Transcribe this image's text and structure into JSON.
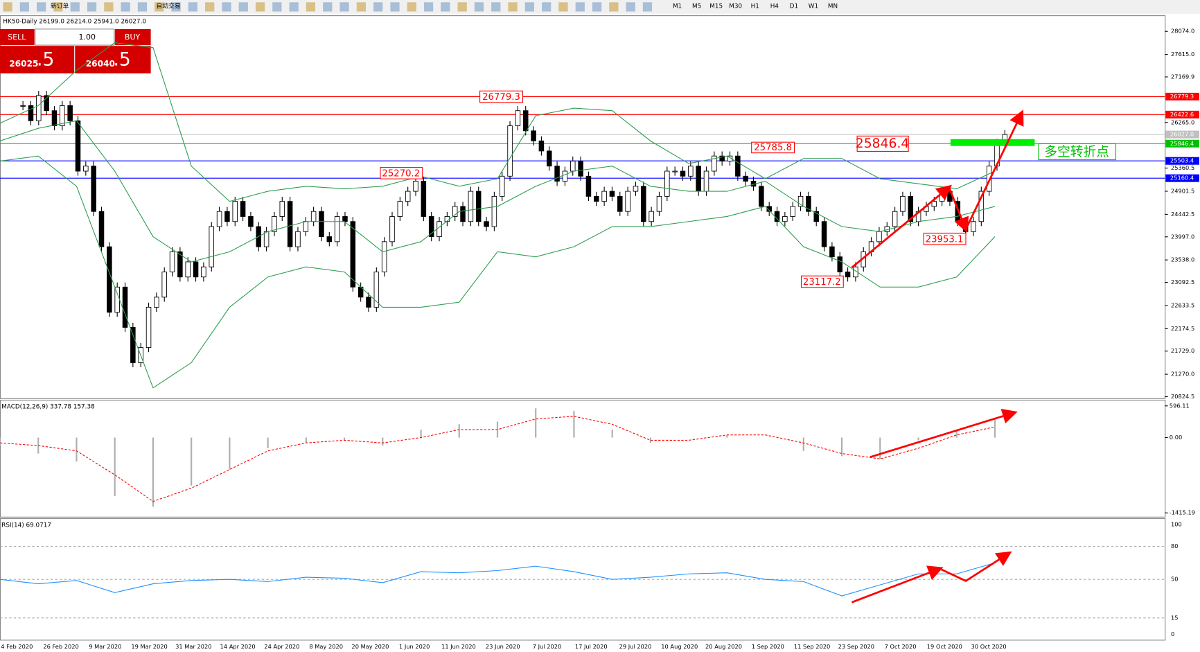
{
  "toolbar": {
    "buttons": [
      "新订单",
      "自动交易"
    ],
    "timeframes": [
      "M1",
      "M5",
      "M15",
      "M30",
      "H1",
      "H4",
      "D1",
      "W1",
      "MN"
    ]
  },
  "chart": {
    "header": "HK50-Daily  26199.0 26214.0 25941.0 26027.0",
    "trade_panel": {
      "sell": "SELL",
      "lot": "1.00",
      "buy": "BUY",
      "bid": "26025",
      "bid_fraction": ".5",
      "ask": "26040",
      "ask_fraction": ".5"
    },
    "ylim": [
      20824.5,
      28074.0
    ],
    "price_ticks": [
      {
        "value": 28074.0,
        "label": "28074.0"
      },
      {
        "value": 27615.0,
        "label": "27615.0"
      },
      {
        "value": 27169.9,
        "label": "27169.9"
      },
      {
        "value": 26265.0,
        "label": "26265.0"
      },
      {
        "value": 25360.5,
        "label": "25360.5"
      },
      {
        "value": 24901.5,
        "label": "24901.5"
      },
      {
        "value": 24442.5,
        "label": "24442.5"
      },
      {
        "value": 23997.0,
        "label": "23997.0"
      },
      {
        "value": 23538.0,
        "label": "23538.0"
      },
      {
        "value": 23092.5,
        "label": "23092.5"
      },
      {
        "value": 22633.5,
        "label": "22633.5"
      },
      {
        "value": 22174.5,
        "label": "22174.5"
      },
      {
        "value": 21729.0,
        "label": "21729.0"
      },
      {
        "value": 21270.0,
        "label": "21270.0"
      },
      {
        "value": 20824.5,
        "label": "20824.5"
      }
    ],
    "levels": [
      {
        "value": 26779.3,
        "label": "26779.3",
        "color": "#ff0000"
      },
      {
        "value": 26422.6,
        "label": "26422.6",
        "color": "#ff0000"
      },
      {
        "value": 26027.0,
        "label": "26027.0",
        "color": "#c0c0c0"
      },
      {
        "value": 25846.4,
        "label": "25846.4",
        "color": "#00c000"
      },
      {
        "value": 25503.4,
        "label": "25503.4",
        "color": "#0000ff"
      },
      {
        "value": 25160.4,
        "label": "25160.4",
        "color": "#0000ff"
      }
    ],
    "annotations": [
      "26779.3",
      "25270.2",
      "25785.8",
      "25846.4",
      "23117.2",
      "23953.1",
      "多空转折点"
    ],
    "closes": [
      26600,
      26300,
      26800,
      26500,
      26200,
      26600,
      26300,
      25300,
      25400,
      24500,
      23800,
      22500,
      23000,
      22200,
      21500,
      21800,
      22600,
      22800,
      23300,
      23700,
      23200,
      23500,
      23200,
      23400,
      24200,
      24500,
      24300,
      24700,
      24400,
      24200,
      23800,
      24100,
      24400,
      24700,
      23800,
      24100,
      24300,
      24500,
      24000,
      23900,
      24400,
      24300,
      23000,
      22800,
      22600,
      23300,
      23900,
      24400,
      24700,
      24900,
      25100,
      24400,
      24000,
      24300,
      24400,
      24600,
      24300,
      24900,
      24300,
      24200,
      24800,
      25200,
      26200,
      26500,
      26100,
      25900,
      25700,
      25400,
      25100,
      25300,
      25500,
      25200,
      24800,
      24700,
      24900,
      24800,
      24500,
      24900,
      25000,
      24300,
      24500,
      24800,
      25300,
      25300,
      25200,
      25400,
      24900,
      25300,
      25600,
      25500,
      25600,
      25200,
      25100,
      25000,
      24600,
      24500,
      24300,
      24400,
      24600,
      24800,
      24500,
      24300,
      23800,
      23600,
      23300,
      23200,
      23400,
      23700,
      23900,
      24100,
      24200,
      24500,
      24800,
      24300,
      24500,
      24600,
      24700,
      24900,
      24700,
      24300,
      24100,
      24300,
      24900,
      25400,
      25850,
      26027
    ],
    "bollinger": {
      "upper": [
        26250,
        26600,
        27300,
        27850,
        27750,
        25400,
        24700,
        24900,
        25000,
        24950,
        25000,
        25200,
        25000,
        25150,
        26400,
        26550,
        26500,
        25900,
        25450,
        25600,
        25150,
        25550,
        25550,
        25150,
        25050,
        24950,
        25300
      ],
      "middle": [
        25900,
        26150,
        26300,
        25300,
        24000,
        23500,
        23700,
        24100,
        24300,
        24300,
        23700,
        23900,
        24500,
        24600,
        25000,
        25300,
        25400,
        25000,
        24900,
        24900,
        25100,
        24600,
        24200,
        24100,
        24300,
        24400,
        24600
      ],
      "lower": [
        25500,
        25600,
        25000,
        23000,
        21000,
        21500,
        22600,
        23200,
        23400,
        23300,
        22600,
        22600,
        22700,
        23700,
        23600,
        23800,
        24200,
        24200,
        24300,
        24400,
        24600,
        23800,
        23500,
        23000,
        23000,
        23200,
        24000
      ]
    },
    "dates": [
      "4 Feb 2020",
      "26 Feb 2020",
      "9 Mar 2020",
      "19 Mar 2020",
      "31 Mar 2020",
      "14 Apr 2020",
      "24 Apr 2020",
      "8 May 2020",
      "20 May 2020",
      "1 Jun 2020",
      "11 Jun 2020",
      "23 Jun 2020",
      "7 Jul 2020",
      "17 Jul 2020",
      "29 Jul 2020",
      "10 Aug 2020",
      "20 Aug 2020",
      "1 Sep 2020",
      "11 Sep 2020",
      "23 Sep 2020",
      "7 Oct 2020",
      "19 Oct 2020",
      "30 Oct 2020"
    ]
  },
  "macd": {
    "label": "MACD(12,26,9) 337.78 157.38",
    "ylim": [
      -1415.19,
      596.11
    ],
    "ticks": [
      596.11,
      {
        "value": 0,
        "label": "0.00"
      },
      -1415.19
    ],
    "histogram": [
      -150,
      -300,
      -450,
      -1100,
      -1300,
      -900,
      -600,
      -200,
      -100,
      -50,
      -150,
      150,
      250,
      300,
      550,
      500,
      150,
      -100,
      0,
      50,
      0,
      -250,
      -350,
      -400,
      -50,
      150,
      350
    ],
    "signal": [
      -100,
      -150,
      -250,
      -700,
      -1200,
      -950,
      -600,
      -250,
      -100,
      -50,
      -100,
      0,
      150,
      150,
      350,
      400,
      250,
      -50,
      -50,
      50,
      50,
      -100,
      -300,
      -400,
      -200,
      50,
      200
    ]
  },
  "rsi": {
    "label": "RSI(14) 69.0717",
    "ylim": [
      0,
      100
    ],
    "ticks": [
      100,
      80,
      50,
      15,
      0
    ],
    "values": [
      50,
      46,
      49,
      38,
      46,
      49,
      50,
      48,
      52,
      51,
      47,
      57,
      56,
      58,
      62,
      57,
      50,
      52,
      55,
      56,
      50,
      48,
      35,
      45,
      55,
      55,
      65
    ]
  }
}
